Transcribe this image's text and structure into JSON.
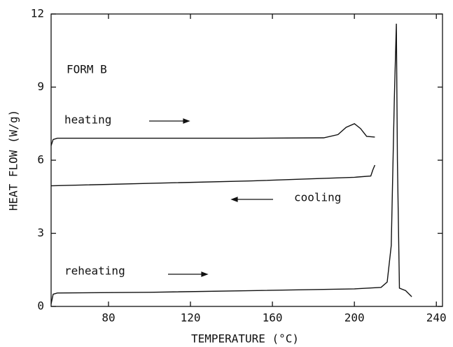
{
  "chart_data": {
    "type": "line",
    "x_label": "TEMPERATURE  (°C)",
    "y_label": "HEAT FLOW  (W/g)",
    "annotations": [
      "FORM B",
      "heating",
      "cooling",
      "reheating"
    ],
    "xlim": [
      52,
      243
    ],
    "xticks": [
      80,
      120,
      160,
      200,
      240
    ],
    "ylim": [
      0,
      12
    ],
    "yticks": [
      0,
      3,
      6,
      9,
      12
    ],
    "color": "#111111",
    "series": [
      {
        "name": "heating",
        "x": [
          52,
          53,
          55,
          100,
          150,
          185,
          192,
          196,
          200,
          203,
          206,
          210
        ],
        "values": [
          6.6,
          6.85,
          6.9,
          6.9,
          6.9,
          6.92,
          7.05,
          7.35,
          7.5,
          7.3,
          6.98,
          6.95
        ]
      },
      {
        "name": "cooling",
        "x": [
          52,
          100,
          150,
          200,
          208,
          209,
          210
        ],
        "values": [
          4.95,
          5.05,
          5.15,
          5.3,
          5.35,
          5.6,
          5.8
        ]
      },
      {
        "name": "reheating",
        "x": [
          52,
          53,
          55,
          100,
          150,
          200,
          213,
          216,
          218,
          219.5,
          220.5,
          221,
          222,
          225,
          228
        ],
        "values": [
          0.1,
          0.5,
          0.55,
          0.58,
          0.65,
          0.72,
          0.78,
          1.0,
          2.5,
          8.5,
          11.6,
          6.0,
          0.75,
          0.65,
          0.4
        ]
      }
    ]
  }
}
